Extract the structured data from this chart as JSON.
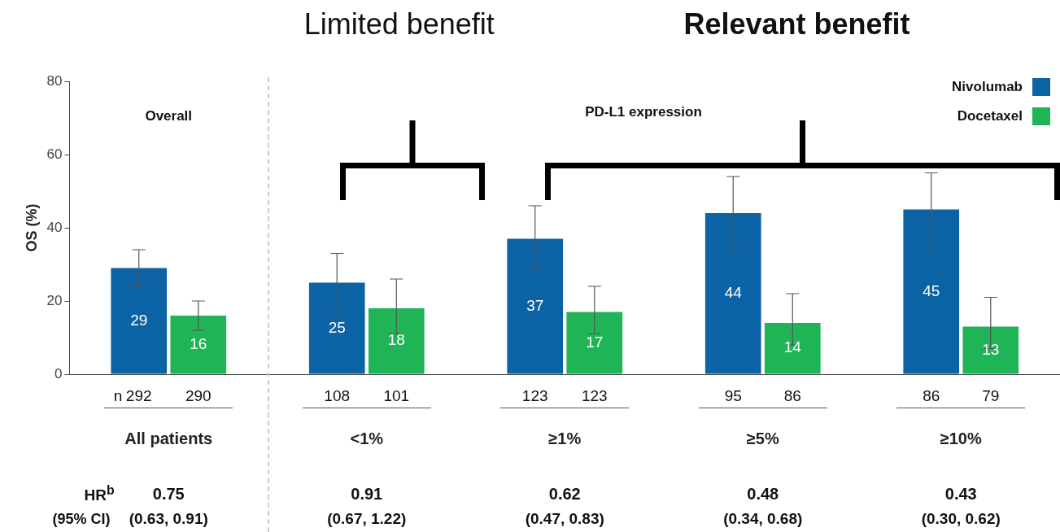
{
  "chart_data": {
    "type": "bar",
    "categories": [
      "All patients",
      "<1%",
      "≥1%",
      "≥5%",
      "≥10%"
    ],
    "series": [
      {
        "name": "Nivolumab",
        "color": "#0b62a4",
        "values": [
          29,
          25,
          37,
          44,
          45
        ],
        "errors": [
          [
            24,
            34
          ],
          [
            17,
            33
          ],
          [
            29,
            46
          ],
          [
            34,
            54
          ],
          [
            34,
            55
          ]
        ]
      },
      {
        "name": "Docetaxel",
        "color": "#1fb456",
        "values": [
          16,
          18,
          17,
          14,
          13
        ],
        "errors": [
          [
            12,
            20
          ],
          [
            11,
            26
          ],
          [
            11,
            24
          ],
          [
            8,
            22
          ],
          [
            7,
            21
          ]
        ]
      }
    ],
    "ylabel": "OS (%)",
    "ylim": [
      0,
      80
    ],
    "yticks": [
      0,
      20,
      40,
      60,
      80
    ],
    "grid": false,
    "legend": "top right",
    "data_labels": true,
    "annotations": [
      "Limited benefit",
      "Relevant benefit",
      "Overall",
      "PD-L1 expression",
      "n",
      "292",
      "290",
      "108",
      "101",
      "123",
      "123",
      "95",
      "86",
      "86",
      "79",
      "HR$^{b}$",
      "(95% CI)",
      "0.75",
      "0.91",
      "0.62",
      "0.48",
      "0.43",
      "(0.63, 0.91)",
      "(0.67, 1.22)",
      "(0.47, 0.83)",
      "(0.34, 0.68)",
      "(0.30, 0.62)"
    ]
  }
}
